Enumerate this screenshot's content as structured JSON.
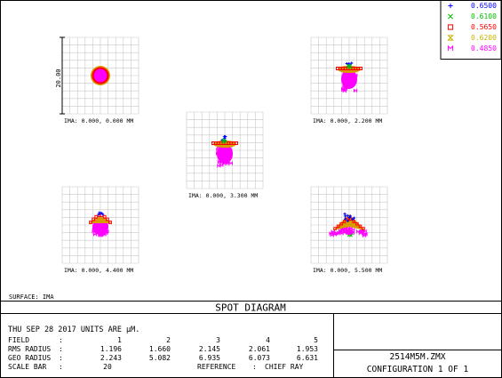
{
  "chart_data": {
    "type": "scatter",
    "title": "SPOT DIAGRAM",
    "legend": {
      "placement": "top-right",
      "entries": [
        {
          "marker": "+",
          "wavelength": "0.6500",
          "color": "#0000ff"
        },
        {
          "marker": "x",
          "wavelength": "0.6100",
          "color": "#00c000"
        },
        {
          "marker": "square",
          "wavelength": "0.5650",
          "color": "#ff0000"
        },
        {
          "marker": "hourglass",
          "wavelength": "0.6200",
          "color": "#c8b400"
        },
        {
          "marker": "M",
          "wavelength": "0.4850",
          "color": "#ff00ff"
        }
      ]
    },
    "scale_bar_label": "20.00",
    "spots": [
      {
        "field": 1,
        "label": "IMA: 0.000, 0.000 MM",
        "pattern": "round"
      },
      {
        "field": 2,
        "label": "IMA: 0.000, 2.200 MM",
        "pattern": "fan-down"
      },
      {
        "field": 3,
        "label": "IMA: 0.000, 3.300 MM",
        "pattern": "fan-down"
      },
      {
        "field": 4,
        "label": "IMA: 0.000, 4.400 MM",
        "pattern": "dome"
      },
      {
        "field": 5,
        "label": "IMA: 0.000, 5.500 MM",
        "pattern": "wing"
      }
    ],
    "surface": "SURFACE: IMA",
    "date_line": "THU SEP 28 2017  UNITS ARE µM.",
    "table": {
      "row_labels": [
        "FIELD",
        "RMS RADIUS",
        "GEO RADIUS",
        "SCALE BAR"
      ],
      "field": [
        "1",
        "2",
        "3",
        "4",
        "5"
      ],
      "rms_radius": [
        "1.196",
        "1.660",
        "2.145",
        "2.061",
        "1.953"
      ],
      "geo_radius": [
        "2.243",
        "5.082",
        "6.935",
        "6.073",
        "6.631"
      ],
      "scale_bar": "20",
      "reference_label": "REFERENCE",
      "reference_value": "CHIEF RAY"
    },
    "file": "2514M5M.ZMX",
    "configuration": "CONFIGURATION 1 OF 1"
  }
}
